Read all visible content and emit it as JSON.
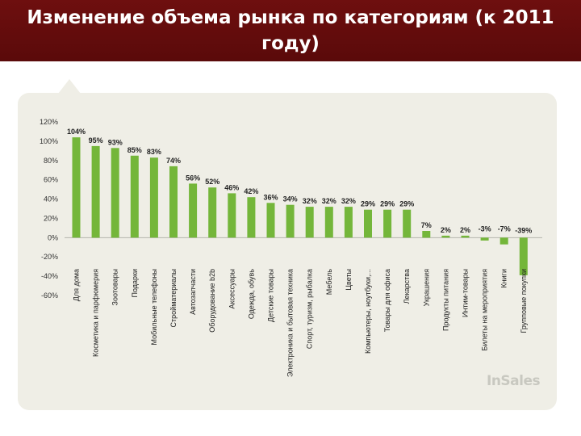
{
  "header": {
    "title": "Изменение объема рынка по категориям (к 2011 году)"
  },
  "logo": {
    "text": "InSales"
  },
  "colors": {
    "bar": "#74b63a",
    "header": "#5e0b0b",
    "panel": "#efeee6"
  },
  "chart_data": {
    "type": "bar",
    "title": "",
    "xlabel": "",
    "ylabel": "",
    "ylim": [
      -60,
      120
    ],
    "yticks": [
      "120%",
      "100%",
      "80%",
      "60%",
      "40%",
      "20%",
      "0%",
      "-20%",
      "-40%",
      "-60%"
    ],
    "categories": [
      "Для дома",
      "Косметика и парфюмерия",
      "Зоотовары",
      "Подарки",
      "Мобильные телефоны",
      "Стройматериалы",
      "Автозапчасти",
      "Оборудование b2b",
      "Аксессуары",
      "Одежда, обувь",
      "Детские товары",
      "Электроника и бытовая техника",
      "Спорт, туризм, рыбалка",
      "Мебель",
      "Цветы",
      "Компьютеры, ноутбуки,...",
      "Товары для офиса",
      "Лекарства",
      "Украшения",
      "Продукты питания",
      "Интим-товары",
      "Билеты на мероприятия",
      "Книги",
      "Групповые покупки"
    ],
    "values": [
      104,
      95,
      93,
      85,
      83,
      74,
      56,
      52,
      46,
      42,
      36,
      34,
      32,
      32,
      32,
      29,
      29,
      29,
      7,
      2,
      2,
      -3,
      -7,
      -39
    ],
    "value_labels": [
      "104%",
      "95%",
      "93%",
      "85%",
      "83%",
      "74%",
      "56%",
      "52%",
      "46%",
      "42%",
      "36%",
      "34%",
      "32%",
      "32%",
      "32%",
      "29%",
      "29%",
      "29%",
      "7%",
      "2%",
      "2%",
      "-3%",
      "-7%",
      "-39%"
    ],
    "grid": false,
    "legend": "none"
  }
}
